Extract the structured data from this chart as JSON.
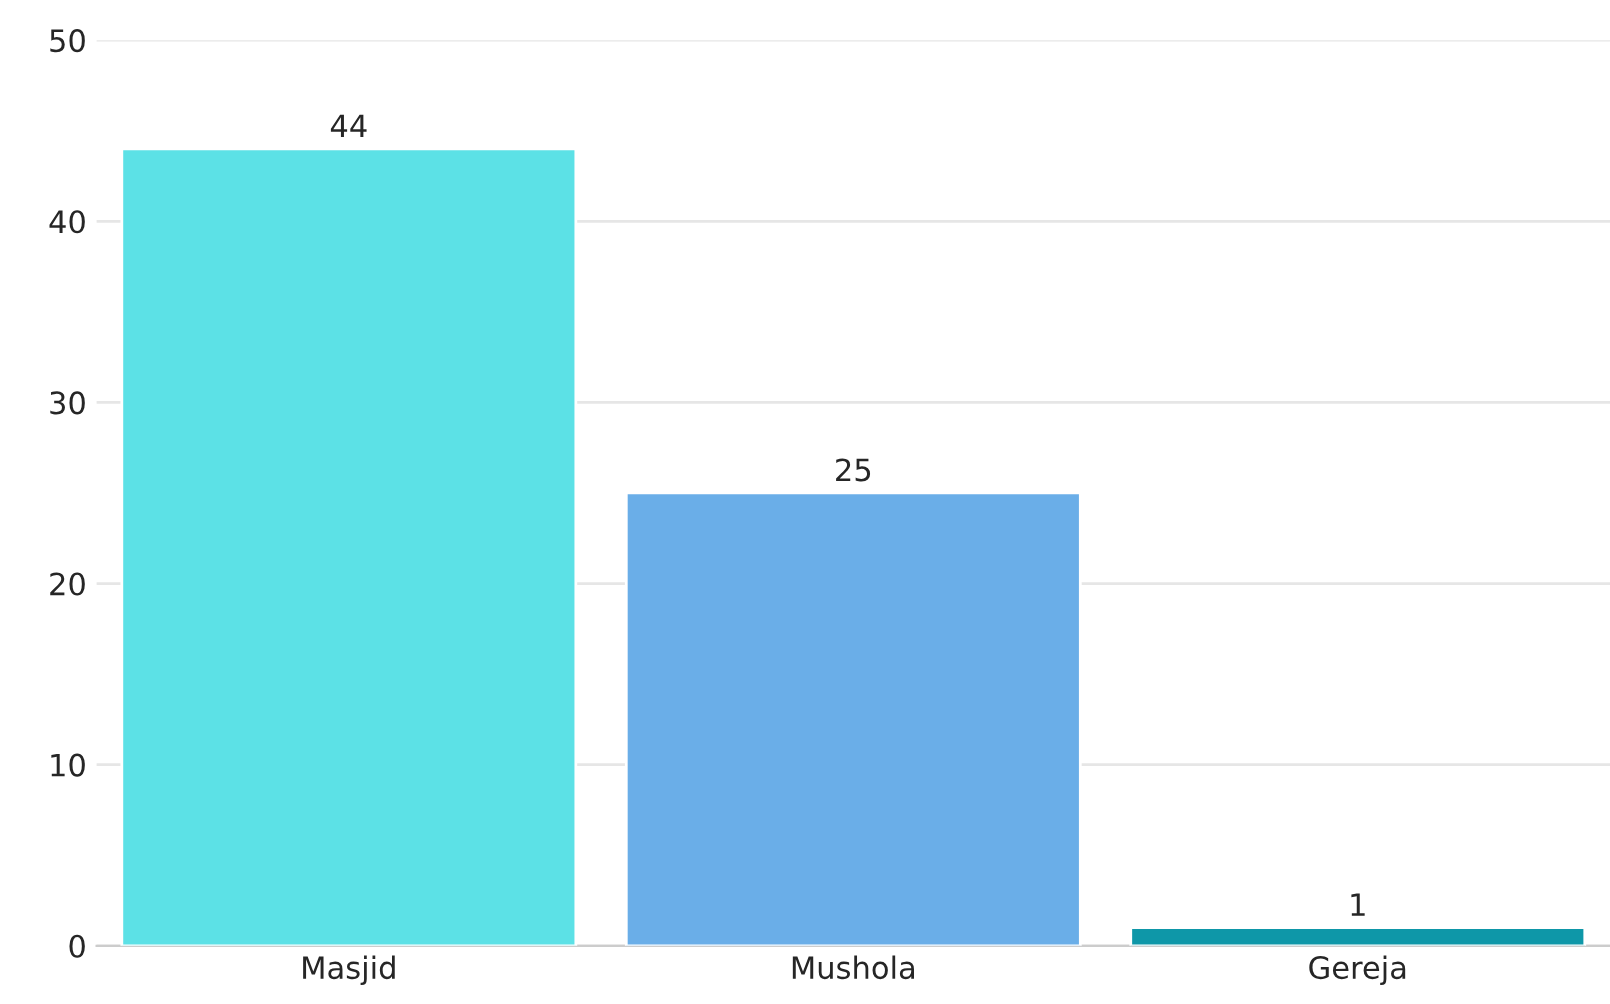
{
  "chart_data": {
    "type": "bar",
    "categories": [
      "Masjid",
      "Mushola",
      "Gereja"
    ],
    "values": [
      44,
      25,
      1
    ],
    "colors": [
      "#5ce1e6",
      "#6aaee8",
      "#0e97a8"
    ],
    "ylim": [
      0,
      50
    ],
    "yticks": [
      0,
      10,
      20,
      30,
      40,
      50
    ],
    "grid": "y",
    "data_labels": true
  }
}
